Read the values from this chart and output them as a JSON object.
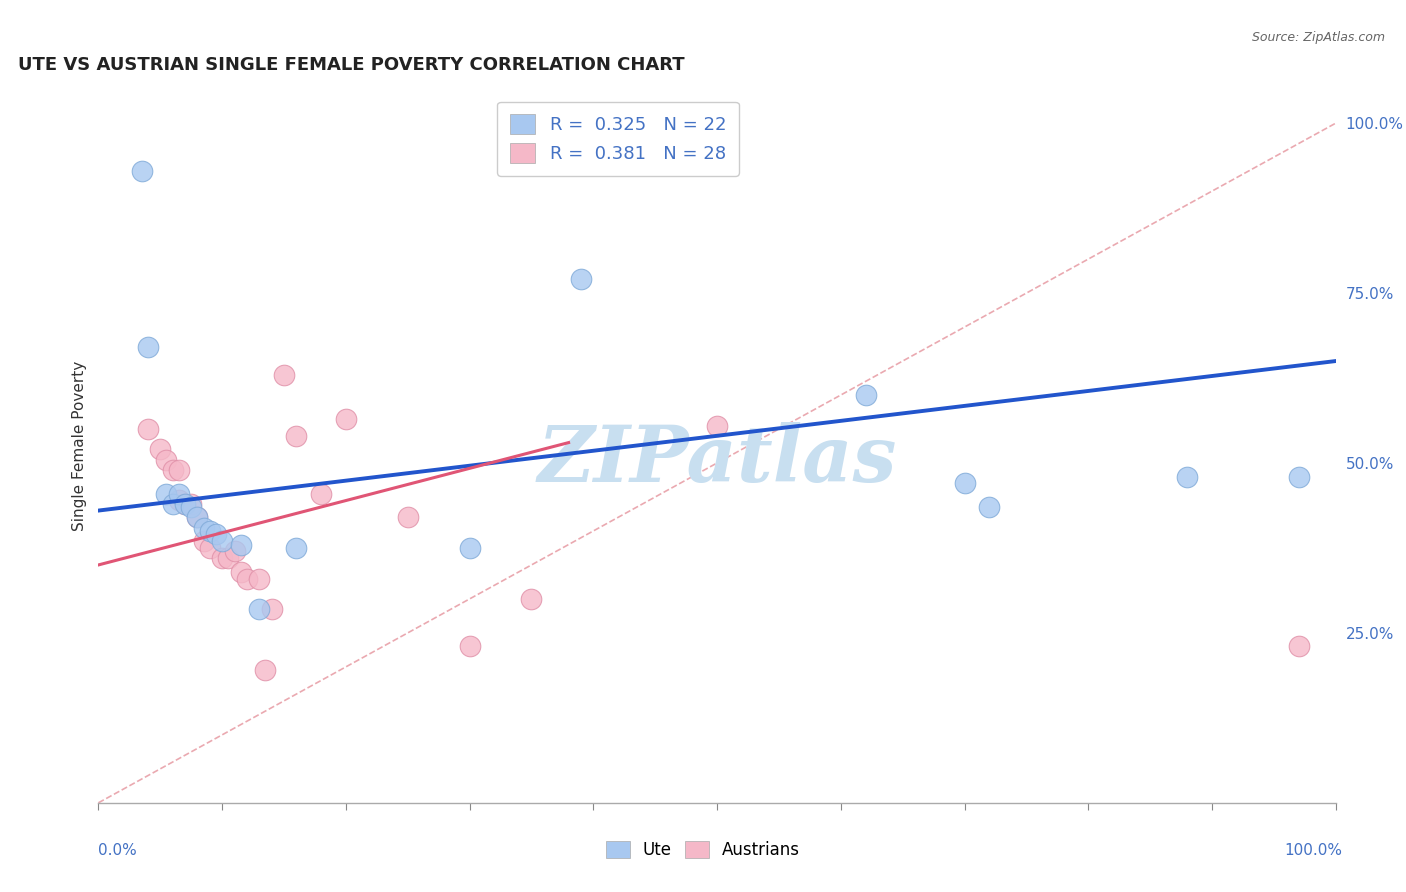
{
  "title": "UTE VS AUSTRIAN SINGLE FEMALE POVERTY CORRELATION CHART",
  "source_text": "Source: ZipAtlas.com",
  "ylabel": "Single Female Poverty",
  "xlim": [
    0,
    1
  ],
  "ylim": [
    0,
    1.05
  ],
  "ytick_labels_right": [
    "25.0%",
    "50.0%",
    "75.0%",
    "100.0%"
  ],
  "ytick_positions_right": [
    0.25,
    0.5,
    0.75,
    1.0
  ],
  "watermark": "ZIPatlas",
  "watermark_color": "#c8dff0",
  "blue_scatter": [
    [
      0.035,
      0.93
    ],
    [
      0.04,
      0.67
    ],
    [
      0.055,
      0.455
    ],
    [
      0.06,
      0.44
    ],
    [
      0.065,
      0.455
    ],
    [
      0.07,
      0.44
    ],
    [
      0.075,
      0.435
    ],
    [
      0.08,
      0.42
    ],
    [
      0.085,
      0.405
    ],
    [
      0.09,
      0.4
    ],
    [
      0.095,
      0.395
    ],
    [
      0.1,
      0.385
    ],
    [
      0.115,
      0.38
    ],
    [
      0.16,
      0.375
    ],
    [
      0.3,
      0.375
    ],
    [
      0.39,
      0.77
    ],
    [
      0.62,
      0.6
    ],
    [
      0.7,
      0.47
    ],
    [
      0.72,
      0.435
    ],
    [
      0.88,
      0.48
    ],
    [
      0.97,
      0.48
    ],
    [
      0.13,
      0.285
    ]
  ],
  "pink_scatter": [
    [
      0.04,
      0.55
    ],
    [
      0.05,
      0.52
    ],
    [
      0.055,
      0.505
    ],
    [
      0.06,
      0.49
    ],
    [
      0.065,
      0.49
    ],
    [
      0.065,
      0.445
    ],
    [
      0.07,
      0.44
    ],
    [
      0.075,
      0.44
    ],
    [
      0.08,
      0.42
    ],
    [
      0.085,
      0.385
    ],
    [
      0.09,
      0.375
    ],
    [
      0.1,
      0.36
    ],
    [
      0.105,
      0.36
    ],
    [
      0.11,
      0.37
    ],
    [
      0.115,
      0.34
    ],
    [
      0.12,
      0.33
    ],
    [
      0.13,
      0.33
    ],
    [
      0.135,
      0.195
    ],
    [
      0.14,
      0.285
    ],
    [
      0.15,
      0.63
    ],
    [
      0.16,
      0.54
    ],
    [
      0.18,
      0.455
    ],
    [
      0.2,
      0.565
    ],
    [
      0.25,
      0.42
    ],
    [
      0.3,
      0.23
    ],
    [
      0.35,
      0.3
    ],
    [
      0.97,
      0.23
    ],
    [
      0.5,
      0.555
    ]
  ],
  "blue_line_color": "#2255cc",
  "pink_line_color": "#e05575",
  "blue_line": {
    "x0": 0.0,
    "y0": 0.43,
    "x1": 1.0,
    "y1": 0.65
  },
  "pink_line": {
    "x0": 0.0,
    "y0": 0.35,
    "x1": 0.38,
    "y1": 0.53
  },
  "diag_line_color": "#e8a0a8",
  "grid_color": "#cccccc",
  "bg_color": "#ffffff",
  "title_fontsize": 13,
  "legend_fontsize": 13,
  "axis_label_fontsize": 11,
  "tick_fontsize": 11
}
